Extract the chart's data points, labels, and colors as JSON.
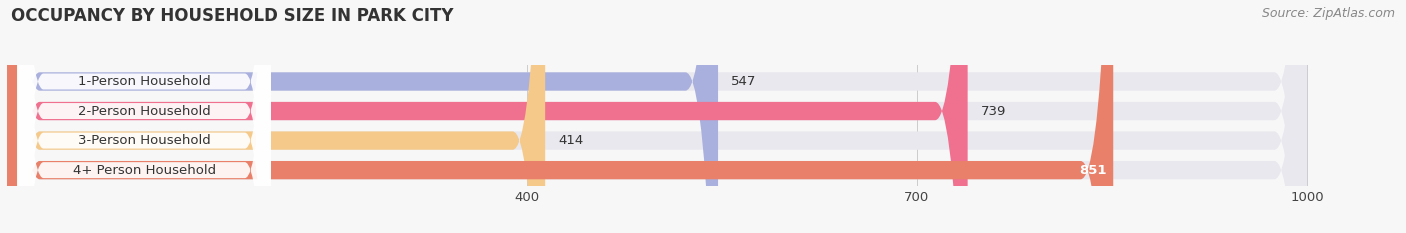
{
  "title": "OCCUPANCY BY HOUSEHOLD SIZE IN PARK CITY",
  "source": "Source: ZipAtlas.com",
  "categories": [
    "1-Person Household",
    "2-Person Household",
    "3-Person Household",
    "4+ Person Household"
  ],
  "values": [
    547,
    739,
    414,
    851
  ],
  "bar_colors": [
    "#aab0de",
    "#f07090",
    "#f5c98a",
    "#e8806a"
  ],
  "bar_bg_color": "#e8e8ee",
  "label_bg_color": "#ffffff",
  "xlim": [
    0,
    1060
  ],
  "data_max": 1000,
  "xticks": [
    400,
    700,
    1000
  ],
  "title_fontsize": 12,
  "label_fontsize": 9.5,
  "value_fontsize": 9.5,
  "source_fontsize": 9,
  "bar_height": 0.62,
  "fig_bg": "#f7f7f7",
  "label_text_color": "#333333",
  "value_color_inside": "#ffffff",
  "value_color_outside": "#333333"
}
